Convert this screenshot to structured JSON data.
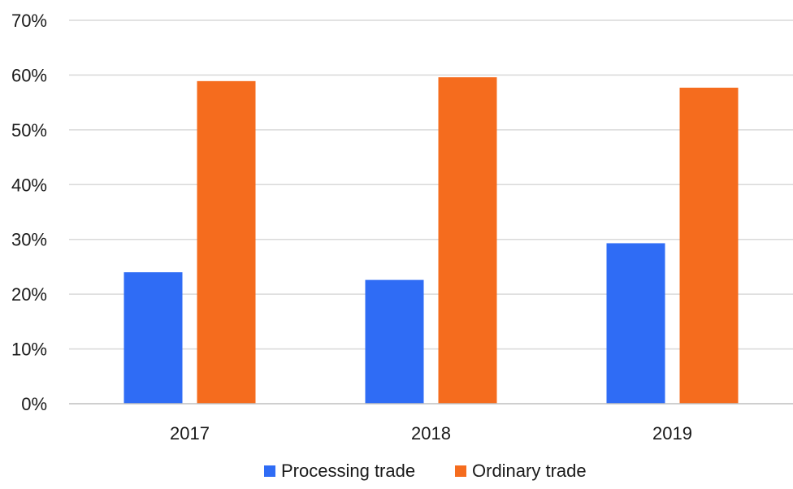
{
  "chart_data": {
    "type": "bar",
    "categories": [
      "2017",
      "2018",
      "2019"
    ],
    "series": [
      {
        "name": "Processing trade",
        "values": [
          24,
          22.6,
          29.3
        ],
        "color": "#2f6cf5"
      },
      {
        "name": "Ordinary trade",
        "values": [
          58.9,
          59.6,
          57.7
        ],
        "color": "#f56c1e"
      }
    ],
    "ylim": [
      0,
      70
    ],
    "yticks": [
      0,
      10,
      20,
      30,
      40,
      50,
      60,
      70
    ],
    "y_tick_format": "%",
    "grid": true,
    "legend_position": "bottom",
    "title": "",
    "xlabel": "",
    "ylabel": ""
  }
}
